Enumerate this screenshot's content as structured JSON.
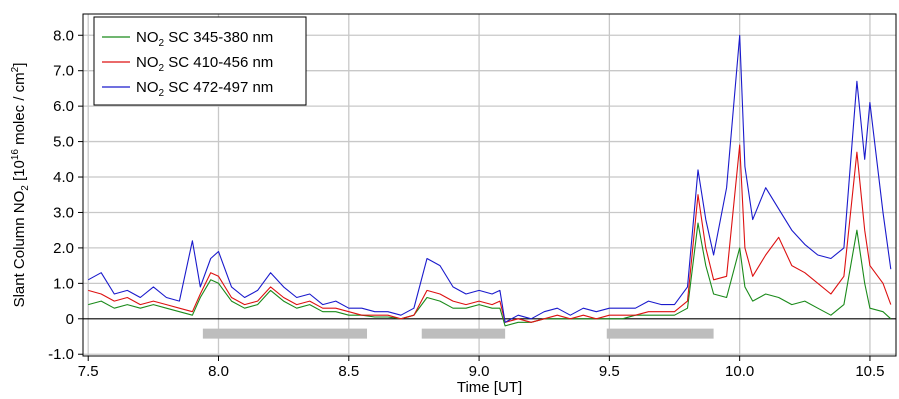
{
  "chart_data": {
    "type": "line",
    "title": "",
    "xlabel": "Time [UT]",
    "ylabel": {
      "pre": "Slant Column NO",
      "sub": "2",
      "mid": " [10",
      "sup": "16",
      "post": " molec / cm",
      "sup2": "2",
      "close": "]"
    },
    "xlim": [
      7.48,
      10.6
    ],
    "ylim": [
      -1.05,
      8.6
    ],
    "xticks": [
      {
        "v": 7.5,
        "label": "7.5"
      },
      {
        "v": 8.0,
        "label": "8.0"
      },
      {
        "v": 8.5,
        "label": "8.5"
      },
      {
        "v": 9.0,
        "label": "9.0"
      },
      {
        "v": 9.5,
        "label": "9.5"
      },
      {
        "v": 10.0,
        "label": "10.0"
      },
      {
        "v": 10.5,
        "label": "10.5"
      }
    ],
    "yticks": [
      {
        "v": -1,
        "label": "-1.0"
      },
      {
        "v": 0,
        "label": "0"
      },
      {
        "v": 1,
        "label": "1.0"
      },
      {
        "v": 2,
        "label": "2.0"
      },
      {
        "v": 3,
        "label": "3.0"
      },
      {
        "v": 4,
        "label": "4.0"
      },
      {
        "v": 5,
        "label": "5.0"
      },
      {
        "v": 6,
        "label": "6.0"
      },
      {
        "v": 7,
        "label": "7.0"
      },
      {
        "v": 8,
        "label": "8.0"
      }
    ],
    "grid": true,
    "legend_position": "top-left",
    "gray_bars": [
      {
        "x0": 7.94,
        "x1": 8.57,
        "y": -0.42
      },
      {
        "x0": 8.78,
        "x1": 9.1,
        "y": -0.42
      },
      {
        "x0": 9.49,
        "x1": 9.9,
        "y": -0.42
      }
    ],
    "series": [
      {
        "name": {
          "pre": "NO",
          "sub": "2",
          "post": " SC 345-380 nm"
        },
        "color": "#1a8a1a",
        "x": [
          7.5,
          7.55,
          7.6,
          7.65,
          7.7,
          7.75,
          7.8,
          7.85,
          7.9,
          7.93,
          7.97,
          8.0,
          8.05,
          8.1,
          8.15,
          8.2,
          8.25,
          8.3,
          8.35,
          8.4,
          8.45,
          8.5,
          8.55,
          8.6,
          8.65,
          8.7,
          8.75,
          8.8,
          8.85,
          8.9,
          8.95,
          9.0,
          9.05,
          9.08,
          9.1,
          9.15,
          9.2,
          9.25,
          9.3,
          9.35,
          9.4,
          9.45,
          9.5,
          9.55,
          9.6,
          9.65,
          9.7,
          9.75,
          9.8,
          9.84,
          9.87,
          9.9,
          9.95,
          10.0,
          10.02,
          10.05,
          10.1,
          10.15,
          10.2,
          10.25,
          10.3,
          10.35,
          10.4,
          10.45,
          10.48,
          10.5,
          10.55,
          10.58
        ],
        "y": [
          0.4,
          0.5,
          0.3,
          0.4,
          0.3,
          0.4,
          0.3,
          0.2,
          0.1,
          0.6,
          1.1,
          1.0,
          0.5,
          0.3,
          0.4,
          0.8,
          0.5,
          0.3,
          0.4,
          0.2,
          0.2,
          0.1,
          0.1,
          0.05,
          0.05,
          0.0,
          0.1,
          0.6,
          0.5,
          0.3,
          0.3,
          0.4,
          0.3,
          0.3,
          -0.2,
          -0.1,
          -0.1,
          0.0,
          0.0,
          0.0,
          0.0,
          0.0,
          0.0,
          0.0,
          0.1,
          0.1,
          0.1,
          0.1,
          0.3,
          2.7,
          1.5,
          0.7,
          0.6,
          2.0,
          0.9,
          0.5,
          0.7,
          0.6,
          0.4,
          0.5,
          0.3,
          0.1,
          0.4,
          2.5,
          1.0,
          0.3,
          0.2,
          0.0
        ]
      },
      {
        "name": {
          "pre": "NO",
          "sub": "2",
          "post": " SC 410-456 nm"
        },
        "color": "#dd1111",
        "x": [
          7.5,
          7.55,
          7.6,
          7.65,
          7.7,
          7.75,
          7.8,
          7.85,
          7.9,
          7.93,
          7.97,
          8.0,
          8.05,
          8.1,
          8.15,
          8.2,
          8.25,
          8.3,
          8.35,
          8.4,
          8.45,
          8.5,
          8.55,
          8.6,
          8.65,
          8.7,
          8.75,
          8.8,
          8.85,
          8.9,
          8.95,
          9.0,
          9.05,
          9.08,
          9.1,
          9.15,
          9.2,
          9.25,
          9.3,
          9.35,
          9.4,
          9.45,
          9.5,
          9.55,
          9.6,
          9.65,
          9.7,
          9.75,
          9.8,
          9.84,
          9.87,
          9.9,
          9.95,
          10.0,
          10.02,
          10.05,
          10.1,
          10.15,
          10.2,
          10.25,
          10.3,
          10.35,
          10.4,
          10.45,
          10.48,
          10.5,
          10.55,
          10.58
        ],
        "y": [
          0.8,
          0.7,
          0.5,
          0.6,
          0.4,
          0.5,
          0.4,
          0.3,
          0.2,
          0.7,
          1.3,
          1.2,
          0.6,
          0.4,
          0.5,
          0.9,
          0.6,
          0.4,
          0.5,
          0.3,
          0.3,
          0.2,
          0.1,
          0.1,
          0.1,
          0.0,
          0.1,
          0.8,
          0.7,
          0.5,
          0.4,
          0.5,
          0.4,
          0.5,
          -0.1,
          0.0,
          -0.1,
          0.0,
          0.1,
          0.0,
          0.1,
          0.0,
          0.1,
          0.1,
          0.1,
          0.2,
          0.2,
          0.2,
          0.5,
          3.5,
          2.0,
          1.1,
          1.2,
          4.9,
          2.0,
          1.2,
          1.8,
          2.3,
          1.5,
          1.3,
          1.0,
          0.7,
          1.2,
          4.7,
          2.5,
          1.5,
          1.0,
          0.4
        ]
      },
      {
        "name": {
          "pre": "NO",
          "sub": "2",
          "post": " SC 472-497 nm"
        },
        "color": "#1a1acc",
        "x": [
          7.5,
          7.55,
          7.6,
          7.65,
          7.7,
          7.75,
          7.8,
          7.85,
          7.9,
          7.93,
          7.97,
          8.0,
          8.05,
          8.1,
          8.15,
          8.2,
          8.25,
          8.3,
          8.35,
          8.4,
          8.45,
          8.5,
          8.55,
          8.6,
          8.65,
          8.7,
          8.75,
          8.8,
          8.85,
          8.9,
          8.95,
          9.0,
          9.05,
          9.08,
          9.1,
          9.15,
          9.2,
          9.25,
          9.3,
          9.35,
          9.4,
          9.45,
          9.5,
          9.55,
          9.6,
          9.65,
          9.7,
          9.75,
          9.8,
          9.84,
          9.87,
          9.9,
          9.95,
          10.0,
          10.02,
          10.05,
          10.1,
          10.15,
          10.2,
          10.25,
          10.3,
          10.35,
          10.4,
          10.45,
          10.48,
          10.5,
          10.55,
          10.58
        ],
        "y": [
          1.1,
          1.3,
          0.7,
          0.8,
          0.6,
          0.9,
          0.6,
          0.5,
          2.2,
          0.9,
          1.7,
          1.9,
          0.9,
          0.6,
          0.8,
          1.3,
          0.9,
          0.6,
          0.7,
          0.4,
          0.5,
          0.3,
          0.3,
          0.2,
          0.2,
          0.1,
          0.3,
          1.7,
          1.5,
          0.9,
          0.7,
          0.8,
          0.7,
          0.8,
          -0.1,
          0.1,
          0.0,
          0.2,
          0.3,
          0.1,
          0.3,
          0.2,
          0.3,
          0.3,
          0.3,
          0.5,
          0.4,
          0.4,
          0.9,
          4.2,
          2.8,
          1.8,
          3.7,
          8.0,
          4.3,
          2.8,
          3.7,
          3.1,
          2.5,
          2.1,
          1.8,
          1.7,
          2.0,
          6.7,
          4.5,
          6.1,
          3.0,
          1.4
        ]
      }
    ]
  }
}
